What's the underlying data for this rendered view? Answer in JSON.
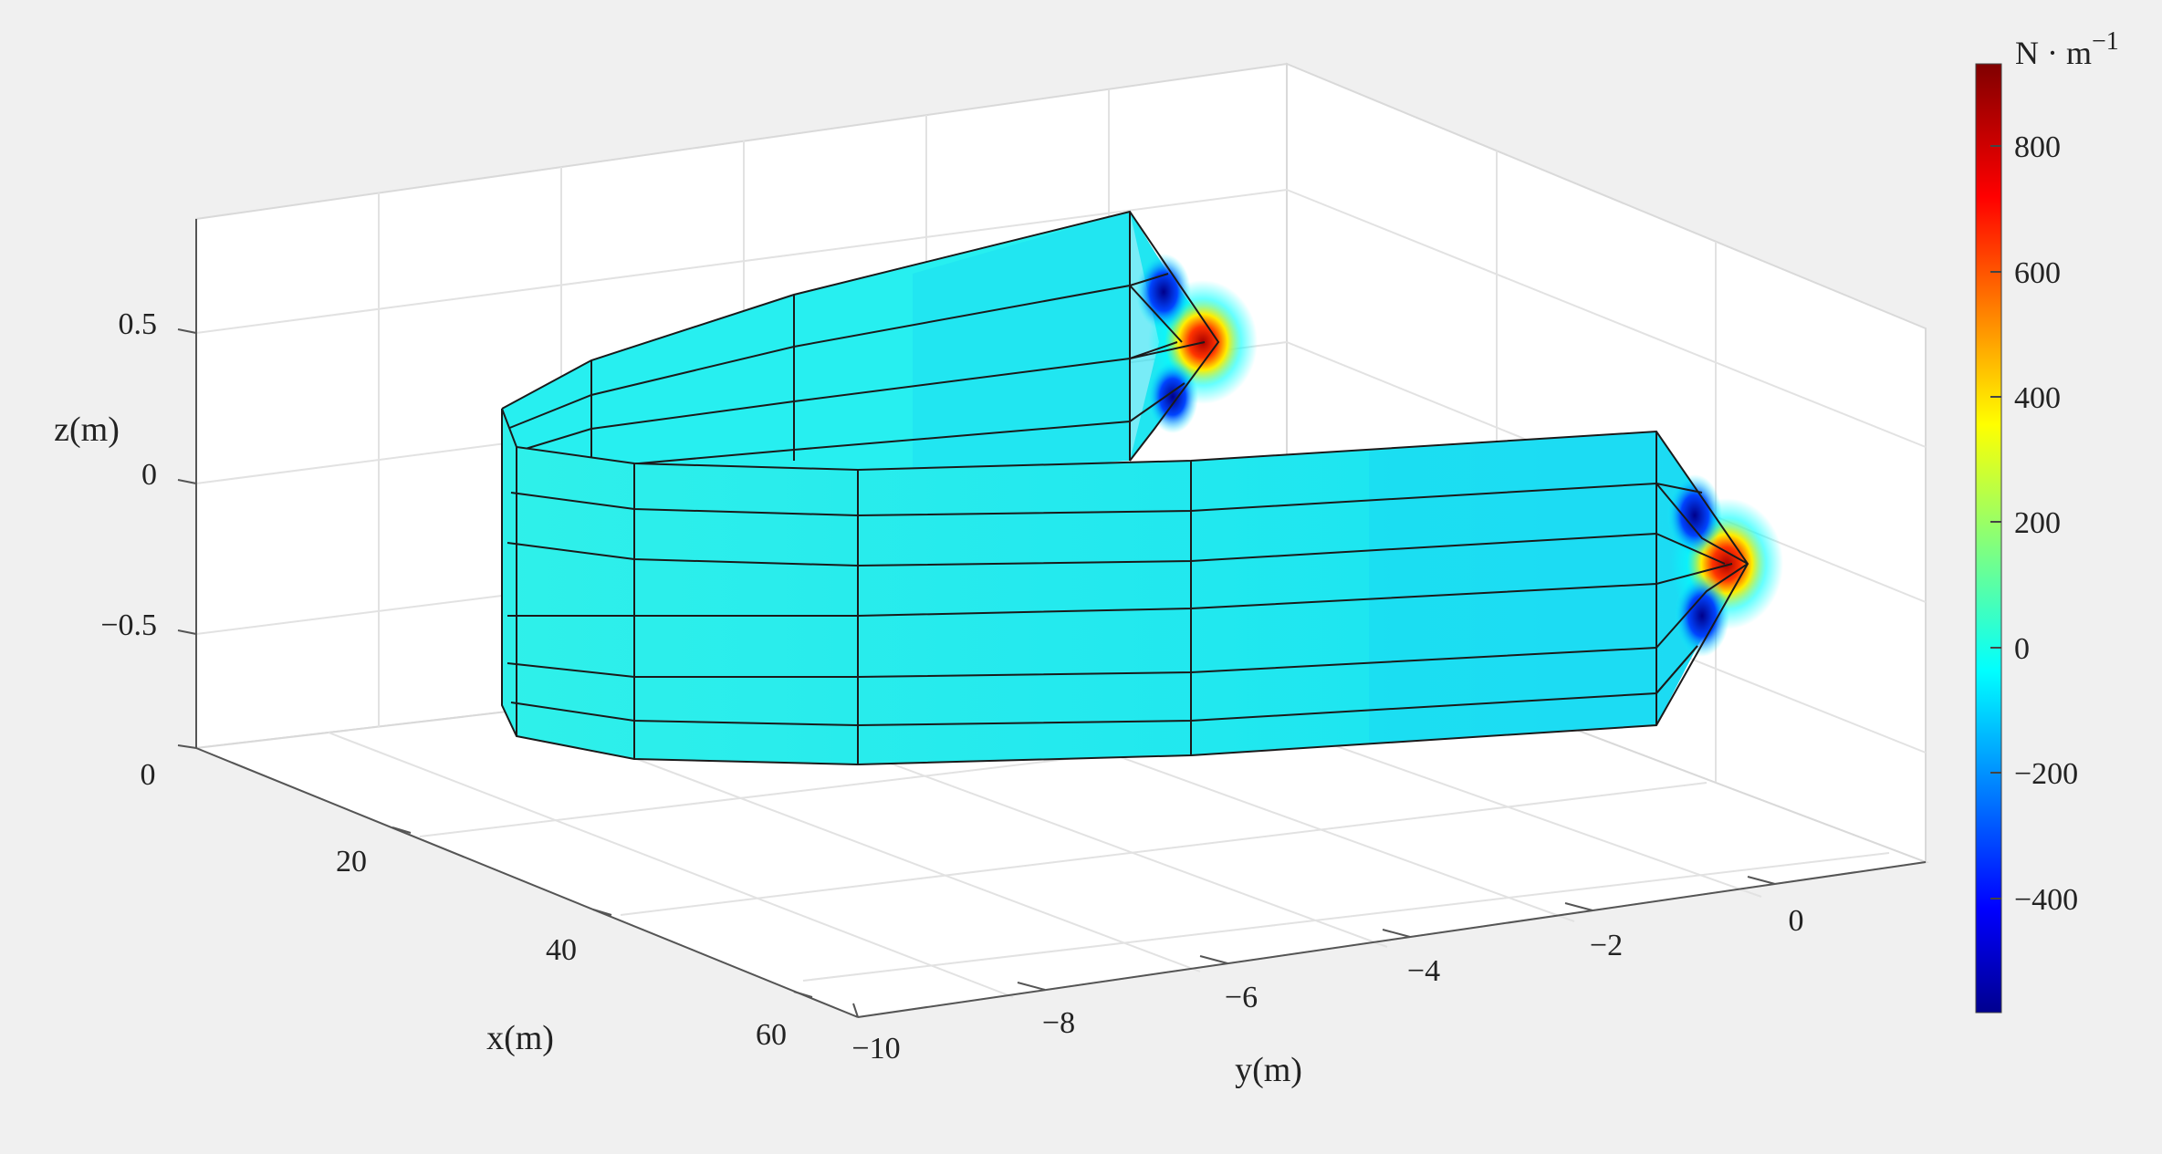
{
  "chart_data": {
    "type": "surface3d",
    "title": "",
    "axes": {
      "x": {
        "label": "x(m)",
        "ticks": [
          "0",
          "20",
          "40",
          "60"
        ],
        "range": [
          0,
          60
        ]
      },
      "y": {
        "label": "y(m)",
        "ticks": [
          "−10",
          "−8",
          "−6",
          "−4",
          "−2",
          "0"
        ],
        "range": [
          -10,
          1
        ]
      },
      "z": {
        "label": "z(m)",
        "ticks": [
          "0.5",
          "0",
          "−0.5"
        ],
        "range": [
          -0.9,
          0.9
        ]
      }
    },
    "grid": true,
    "colorbar": {
      "unit_base": "N · m",
      "unit_exp": "−1",
      "ticks": [
        "800",
        "600",
        "400",
        "200",
        "0",
        "−200",
        "−400"
      ],
      "range": [
        -580,
        920
      ],
      "colormap": "jet"
    },
    "surface": {
      "description_of_field": "near-uniform ~0 over the folded membrane, concentrated extremes at the two tips",
      "tip_values": [
        920,
        -500
      ]
    }
  }
}
